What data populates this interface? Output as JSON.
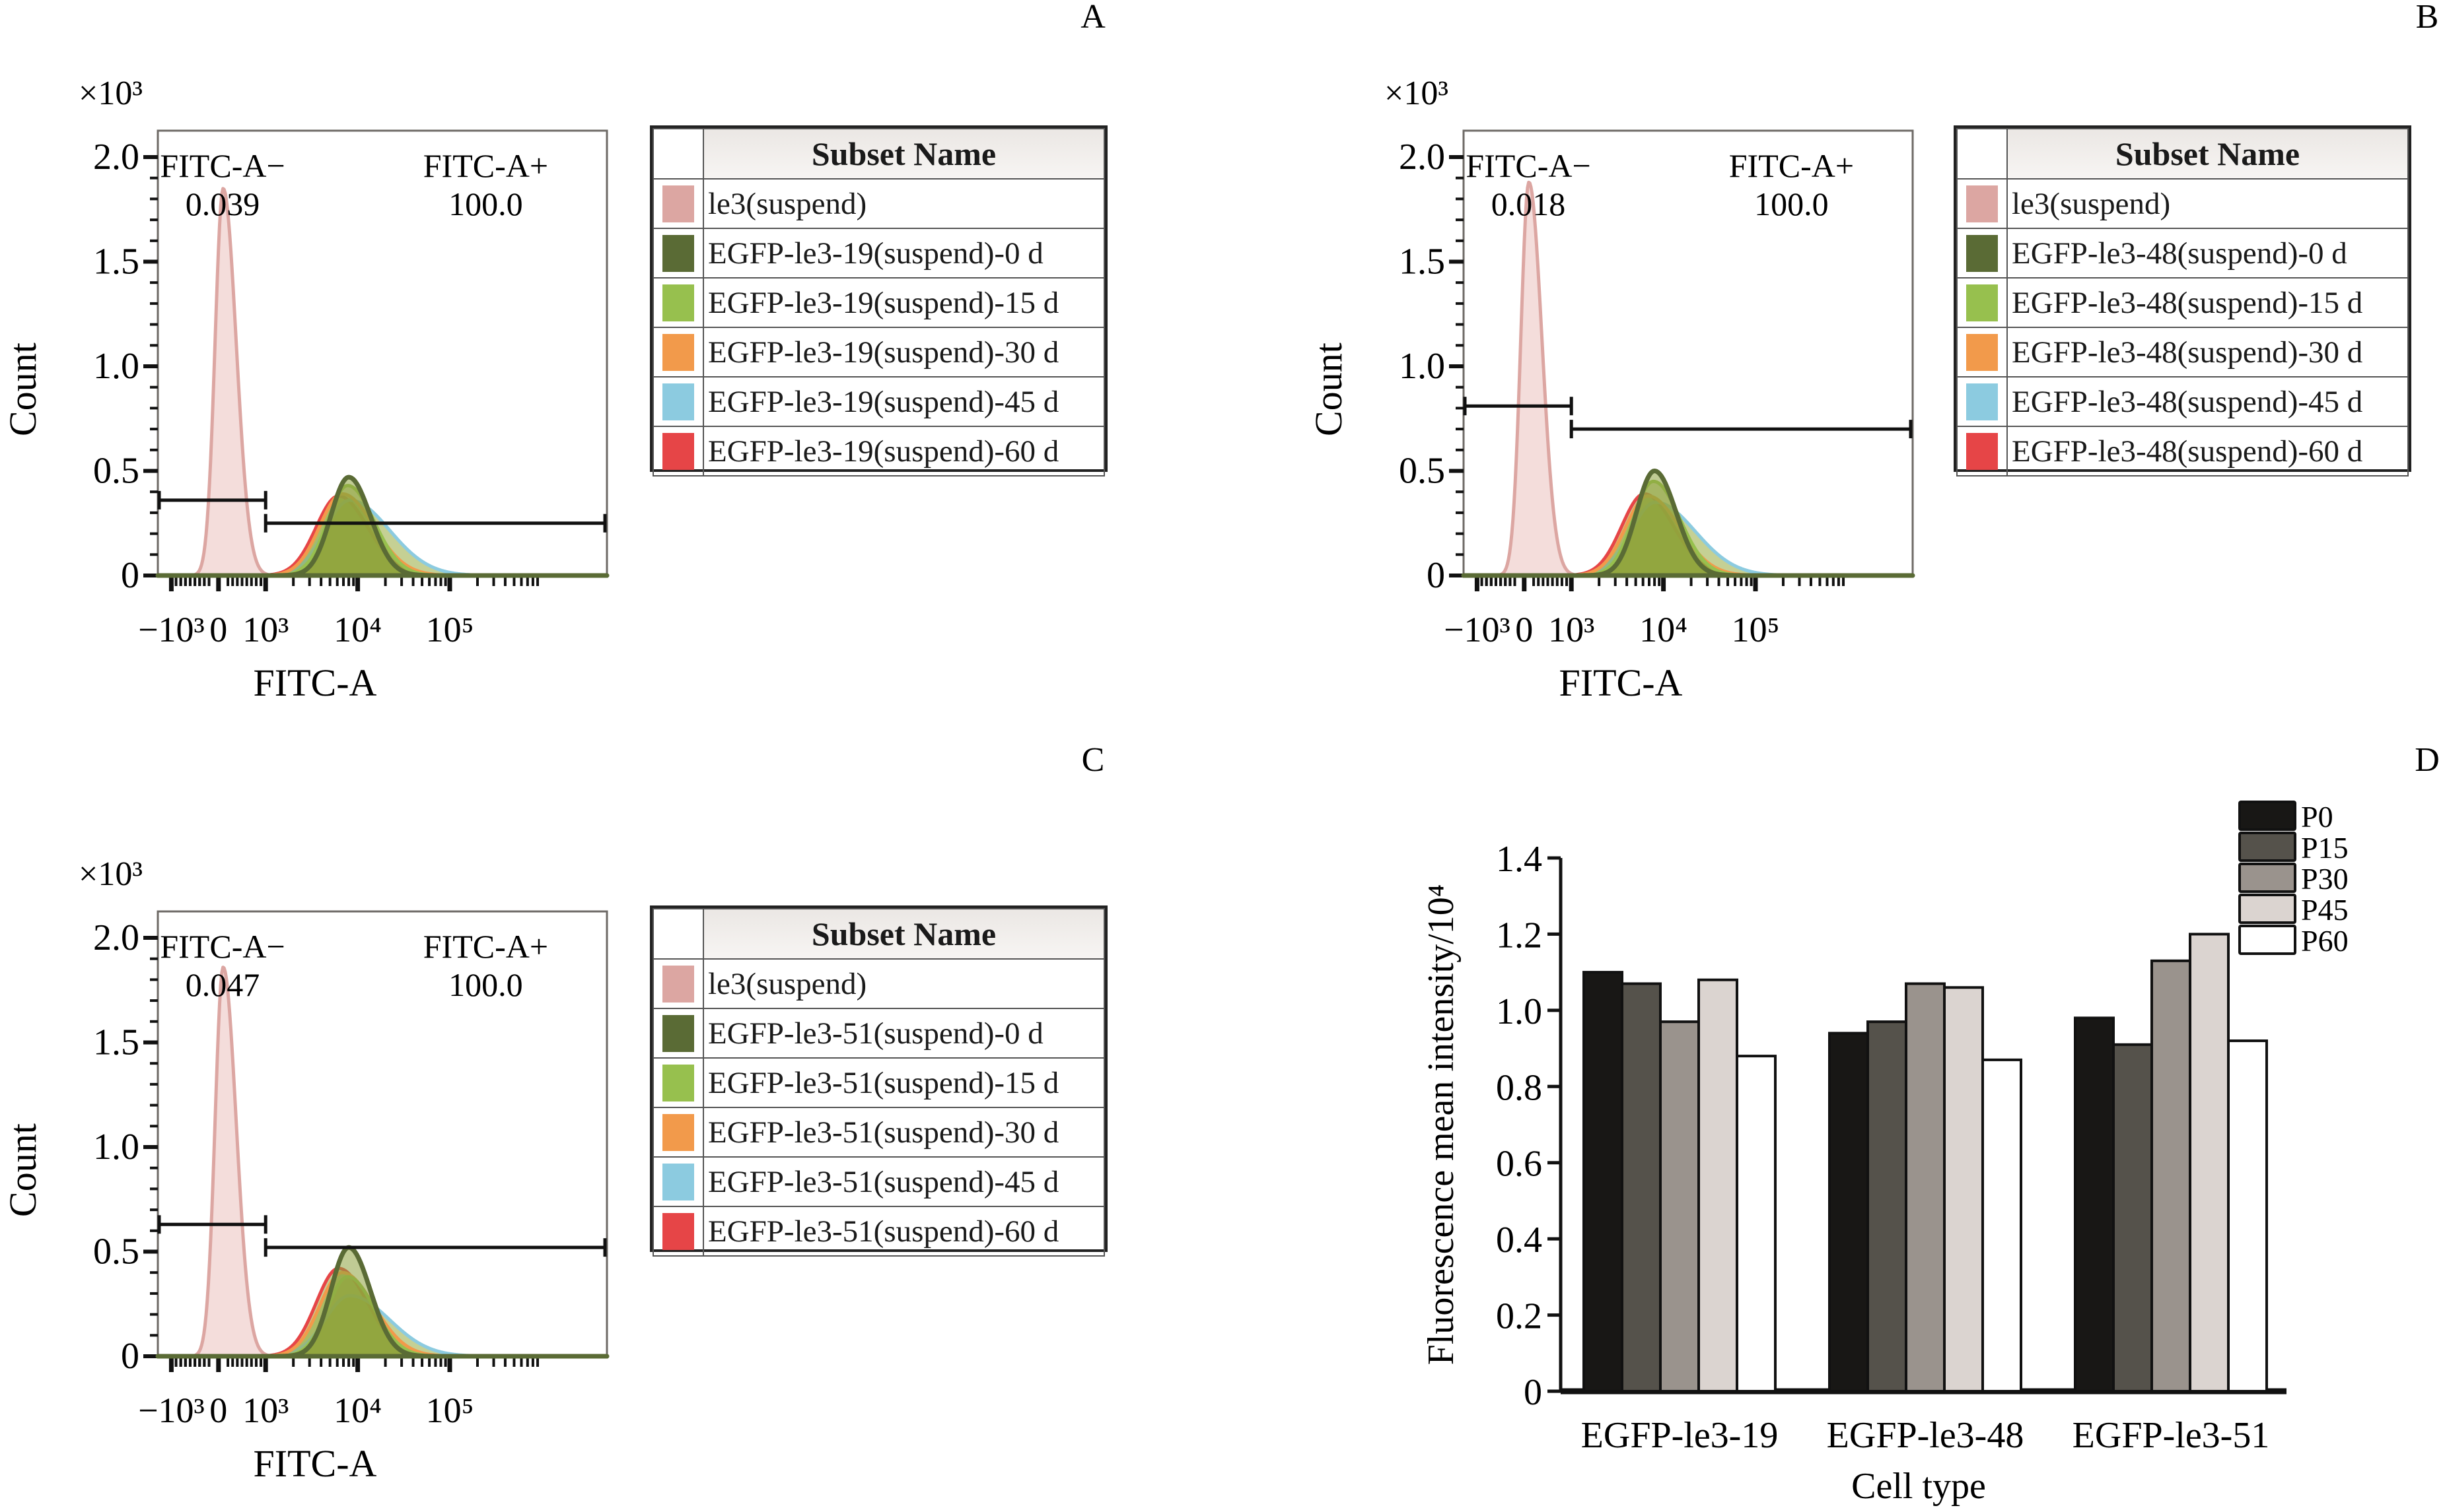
{
  "panel_letters": [
    "A",
    "B",
    "C",
    "D"
  ],
  "histogram_common": {
    "y_multiplier": "×10³",
    "ylabel": "Count",
    "xlabel": "FITC-A",
    "y_ticks": [
      "0",
      "0.5",
      "1.0",
      "1.5",
      "2.0"
    ],
    "x_ticks": [
      "−10³",
      "0",
      "10³",
      "10⁴",
      "10⁵"
    ],
    "gate_neg_label": "FITC-A−",
    "gate_pos_label": "FITC-A+",
    "legend_header": "Subset Name",
    "series_colors": [
      "#dca6a2",
      "#5a6b35",
      "#97c04e",
      "#f29a4b",
      "#8ccbe0",
      "#e64547"
    ]
  },
  "chart_data": [
    {
      "type": "area",
      "panel": "A",
      "title": "",
      "xlabel": "FITC-A",
      "ylabel": "Count (×10³)",
      "x_scale": "biexponential",
      "ylim": [
        0,
        2.1
      ],
      "gates": [
        {
          "name": "FITC-A−",
          "percent": "0.039",
          "range": [
            "-10^3",
            "10^3"
          ],
          "level": 0.36
        },
        {
          "name": "FITC-A+",
          "percent": "100.0",
          "range": [
            "10^3",
            "2.6×10^5"
          ],
          "level": 0.25
        }
      ],
      "legend": [
        "le3(suspend)",
        "EGFP-le3-19(suspend)-0 d",
        "EGFP-le3-19(suspend)-15 d",
        "EGFP-le3-19(suspend)-30 d",
        "EGFP-le3-19(suspend)-45 d",
        "EGFP-le3-19(suspend)-60 d"
      ],
      "series": [
        {
          "name": "le3(suspend)",
          "peak_x": "≈100",
          "peak_count": 1.85
        },
        {
          "name": "0 d",
          "peak_x": "≈8000",
          "peak_count": 0.47
        },
        {
          "name": "15 d",
          "peak_x": "≈8000",
          "peak_count": 0.43
        },
        {
          "name": "30 d",
          "peak_x": "≈6500",
          "peak_count": 0.39
        },
        {
          "name": "45 d",
          "peak_x": "≈8000",
          "peak_count": 0.36
        },
        {
          "name": "60 d",
          "peak_x": "≈6000",
          "peak_count": 0.38
        }
      ]
    },
    {
      "type": "area",
      "panel": "B",
      "xlabel": "FITC-A",
      "ylabel": "Count (×10³)",
      "x_scale": "biexponential",
      "ylim": [
        0,
        2.1
      ],
      "gates": [
        {
          "name": "FITC-A−",
          "percent": "0.018",
          "range": [
            "-10^3",
            "10^3"
          ],
          "level": 0.81
        },
        {
          "name": "FITC-A+",
          "percent": "100.0",
          "range": [
            "10^3",
            "2.6×10^5"
          ],
          "level": 0.7
        }
      ],
      "legend": [
        "le3(suspend)",
        "EGFP-le3-48(suspend)-0 d",
        "EGFP-le3-48(suspend)-15 d",
        "EGFP-le3-48(suspend)-30 d",
        "EGFP-le3-48(suspend)-45 d",
        "EGFP-le3-48(suspend)-60 d"
      ],
      "series": [
        {
          "name": "le3(suspend)",
          "peak_x": "≈100",
          "peak_count": 1.88
        },
        {
          "name": "0 d",
          "peak_x": "≈7500",
          "peak_count": 0.5
        },
        {
          "name": "15 d",
          "peak_x": "≈7500",
          "peak_count": 0.45
        },
        {
          "name": "30 d",
          "peak_x": "≈7500",
          "peak_count": 0.38
        },
        {
          "name": "45 d",
          "peak_x": "≈8000",
          "peak_count": 0.35
        },
        {
          "name": "60 d",
          "peak_x": "≈6500",
          "peak_count": 0.39
        }
      ]
    },
    {
      "type": "area",
      "panel": "C",
      "xlabel": "FITC-A",
      "ylabel": "Count (×10³)",
      "x_scale": "biexponential",
      "ylim": [
        0,
        2.1
      ],
      "gates": [
        {
          "name": "FITC-A−",
          "percent": "0.047",
          "range": [
            "-10^3",
            "10^3"
          ],
          "level": 0.63
        },
        {
          "name": "FITC-A+",
          "percent": "100.0",
          "range": [
            "10^3",
            "2.6×10^5"
          ],
          "level": 0.52
        }
      ],
      "legend": [
        "le3(suspend)",
        "EGFP-le3-51(suspend)-0 d",
        "EGFP-le3-51(suspend)-15 d",
        "EGFP-le3-51(suspend)-30 d",
        "EGFP-le3-51(suspend)-45 d",
        "EGFP-le3-51(suspend)-60 d"
      ],
      "series": [
        {
          "name": "le3(suspend)",
          "peak_x": "≈100",
          "peak_count": 1.86
        },
        {
          "name": "0 d",
          "peak_x": "≈7500",
          "peak_count": 0.52
        },
        {
          "name": "15 d",
          "peak_x": "≈7000",
          "peak_count": 0.38
        },
        {
          "name": "30 d",
          "peak_x": "≈8000",
          "peak_count": 0.4
        },
        {
          "name": "45 d",
          "peak_x": "≈9000",
          "peak_count": 0.29
        },
        {
          "name": "60 d",
          "peak_x": "≈7500",
          "peak_count": 0.42
        }
      ]
    },
    {
      "type": "bar",
      "panel": "D",
      "title": "",
      "xlabel": "Cell type",
      "ylabel": "Fluorescence mean intensity/10⁴",
      "ylim": [
        0,
        1.4
      ],
      "y_ticks": [
        "0",
        "0.2",
        "0.4",
        "0.6",
        "0.8",
        "1.0",
        "1.2",
        "1.4"
      ],
      "categories": [
        "EGFP-le3-19",
        "EGFP-le3-48",
        "EGFP-le3-51"
      ],
      "legend_position": "top-right",
      "series": [
        {
          "name": "P0",
          "color": "#181715",
          "values": [
            1.1,
            0.94,
            0.98
          ]
        },
        {
          "name": "P15",
          "color": "#55524b",
          "values": [
            1.07,
            0.97,
            0.91
          ]
        },
        {
          "name": "P30",
          "color": "#9a938d",
          "values": [
            0.97,
            1.07,
            1.13
          ]
        },
        {
          "name": "P45",
          "color": "#dbd4d0",
          "values": [
            1.08,
            1.06,
            1.2
          ]
        },
        {
          "name": "P60",
          "color": "#ffffff",
          "values": [
            0.88,
            0.87,
            0.92
          ]
        }
      ]
    }
  ]
}
